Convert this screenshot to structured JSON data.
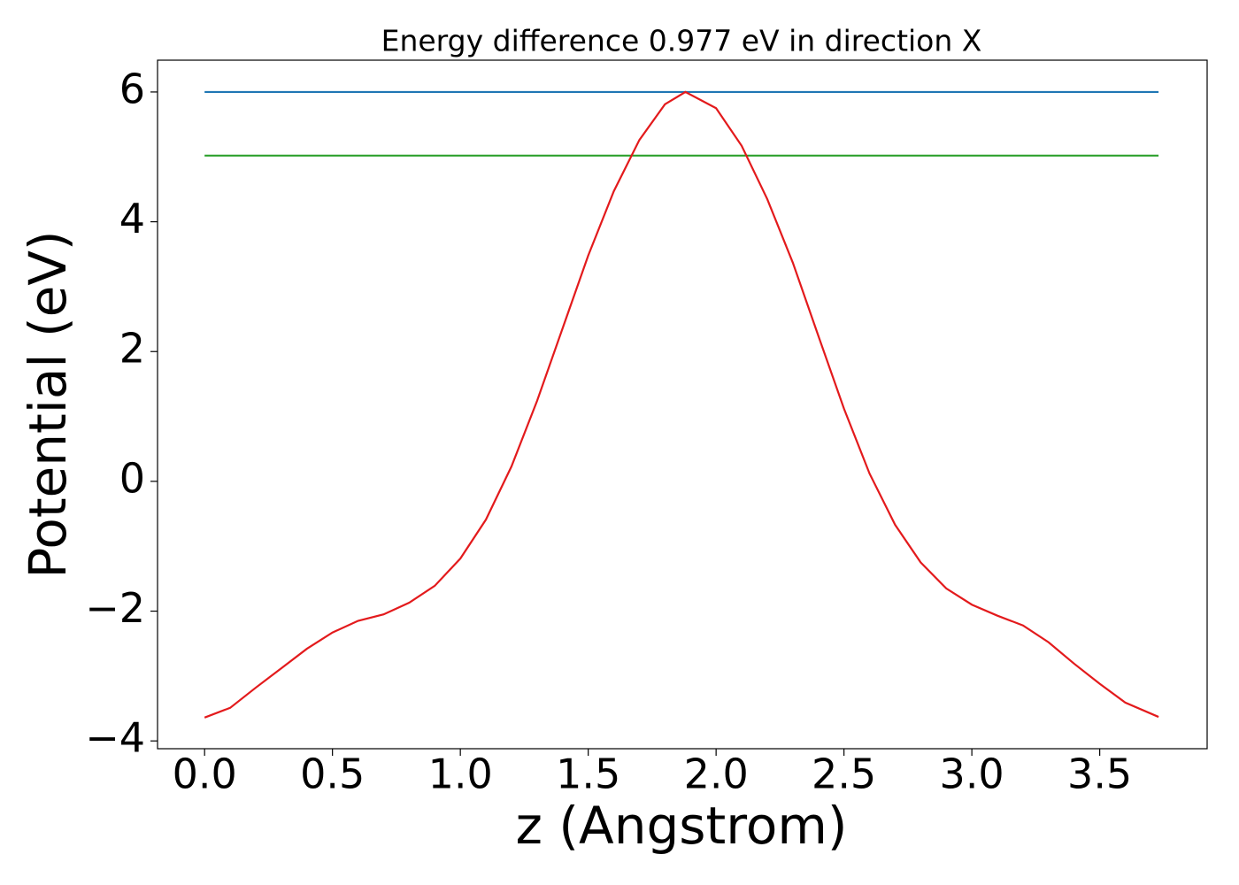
{
  "chart_data": {
    "type": "line",
    "title": "Energy difference 0.977 eV in direction X",
    "x_label": "z (Angstrom)",
    "y_label": "Potential (eV)",
    "xlim": [
      -0.184,
      3.92
    ],
    "ylim": [
      -4.12,
      6.49
    ],
    "xticks": [
      {
        "value": 0,
        "label": "0.0"
      },
      0.5,
      {
        "value": 1,
        "label": "1.0"
      },
      1.5,
      {
        "value": 2,
        "label": "2.0"
      },
      2.5,
      {
        "value": 3,
        "label": "3.0"
      },
      3.5
    ],
    "yticks": [
      {
        "value": -4,
        "label": "−4"
      },
      {
        "value": -2,
        "label": "−2"
      },
      0,
      2,
      4,
      6
    ],
    "series": [
      {
        "color": "#1f77b4",
        "x": [
          0,
          3.73
        ],
        "values": [
          6.0,
          6.0
        ]
      },
      {
        "color": "#2ca02c",
        "x": [
          0,
          3.73
        ],
        "values": [
          5.02,
          5.02
        ]
      },
      {
        "color": "#e31a1c",
        "x": [
          0,
          0.1,
          0.2,
          0.3,
          0.4,
          0.5,
          0.6,
          0.7,
          0.8,
          0.9,
          1.0,
          1.1,
          1.2,
          1.3,
          1.4,
          1.5,
          1.6,
          1.7,
          1.8,
          1.88,
          2.0,
          2.1,
          2.2,
          2.3,
          2.4,
          2.5,
          2.6,
          2.7,
          2.8,
          2.9,
          3.0,
          3.1,
          3.2,
          3.3,
          3.4,
          3.5,
          3.6,
          3.73
        ],
        "values": [
          -3.64,
          -3.49,
          -3.18,
          -2.88,
          -2.58,
          -2.33,
          -2.15,
          -2.05,
          -1.87,
          -1.61,
          -1.19,
          -0.59,
          0.23,
          1.24,
          2.36,
          3.48,
          4.47,
          5.26,
          5.81,
          6.0,
          5.75,
          5.17,
          4.35,
          3.37,
          2.24,
          1.12,
          0.12,
          -0.67,
          -1.25,
          -1.65,
          -1.9,
          -2.07,
          -2.22,
          -2.48,
          -2.81,
          -3.12,
          -3.41,
          -3.63
        ]
      }
    ]
  }
}
